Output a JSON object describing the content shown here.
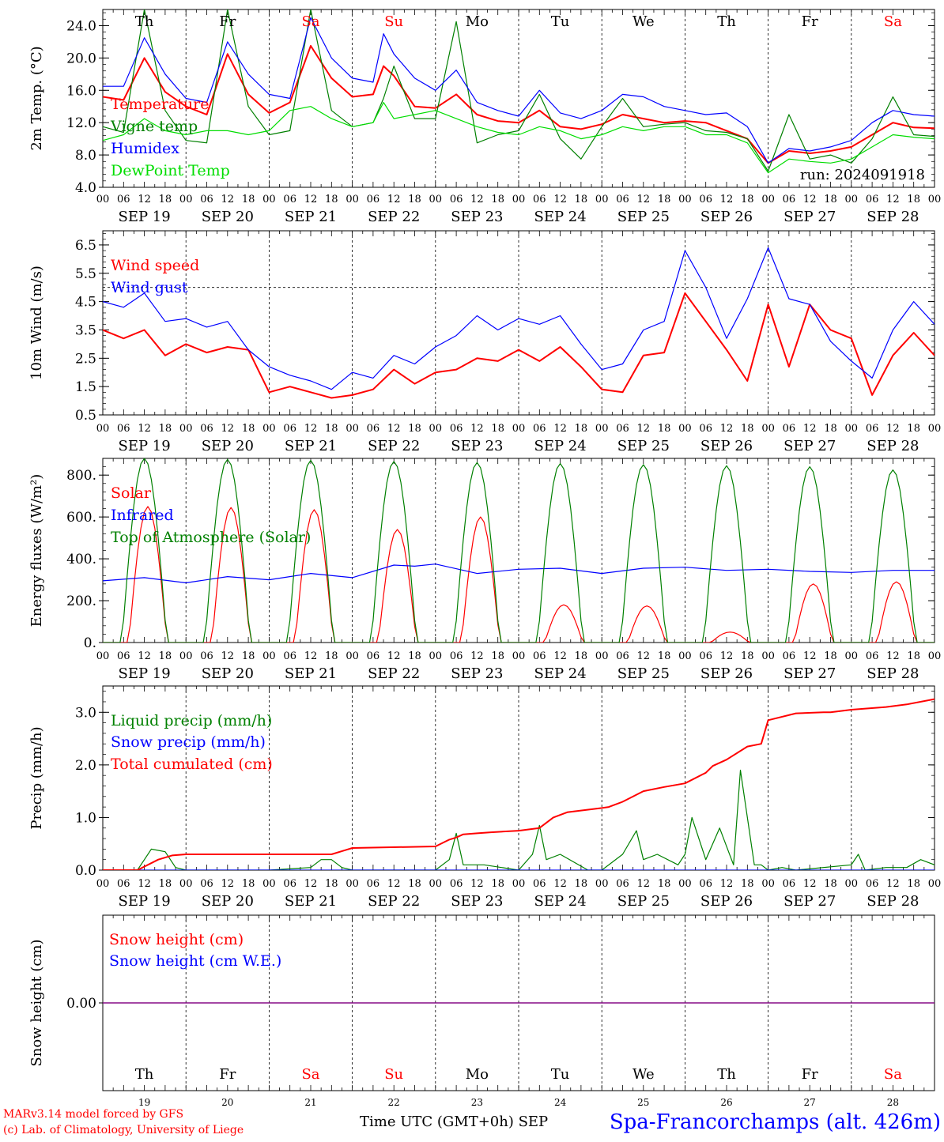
{
  "colors": {
    "red": "#ff0000",
    "green": "#008000",
    "blue": "#0000ff",
    "lime": "#00dd00",
    "purple": "#800080",
    "axis": "#000000"
  },
  "days": {
    "weekday": [
      "Th",
      "Fr",
      "Sa",
      "Su",
      "Mo",
      "Tu",
      "We",
      "Th",
      "Fr",
      "Sa"
    ],
    "weekday_colors": [
      "black",
      "black",
      "red",
      "red",
      "black",
      "black",
      "black",
      "black",
      "black",
      "red"
    ],
    "date_labels": [
      "SEP 19",
      "SEP 20",
      "SEP 21",
      "SEP 22",
      "SEP 23",
      "SEP 24",
      "SEP 25",
      "SEP 26",
      "SEP 27",
      "SEP 28"
    ],
    "day_numbers": [
      "19",
      "20",
      "21",
      "22",
      "23",
      "24",
      "25",
      "26",
      "27",
      "28"
    ],
    "hour_ticks": [
      "00",
      "06",
      "12",
      "18"
    ],
    "final_tick": "00"
  },
  "footer": {
    "model_credit": "MARv3.14 model forced by GFS",
    "copyright": "(c) Lab. of Climatology, University of Liege",
    "time_axis": "Time UTC (GMT+0h) SEP",
    "station": "Spa-Francorchamps (alt. 426m)"
  },
  "chart_data": [
    {
      "type": "line",
      "ylabel": "2m Temp. (°C)",
      "ylim": [
        4.0,
        26.0
      ],
      "ytick_values": [
        4.0,
        8.0,
        12.0,
        16.0,
        20.0,
        24.0
      ],
      "ytick_labels": [
        "4.0",
        "8.0",
        "12.0",
        "16.0",
        "20.0",
        "24.0"
      ],
      "annotation": "run: 2024091918",
      "x_unit": "hours since 2024-09-19 00 UTC",
      "series": [
        {
          "name": "Temperature",
          "color": "red",
          "x": [
            0,
            6,
            12,
            18,
            24,
            30,
            36,
            42,
            48,
            54,
            60,
            66,
            72,
            78,
            81,
            84,
            90,
            96,
            102,
            108,
            114,
            120,
            126,
            132,
            138,
            144,
            150,
            156,
            162,
            168,
            174,
            180,
            186,
            192,
            198,
            204,
            210,
            216,
            222,
            228,
            234,
            240
          ],
          "y": [
            15.2,
            14.8,
            20.0,
            15.8,
            14.0,
            13.0,
            20.5,
            15.5,
            13.2,
            14.5,
            21.5,
            17.5,
            15.2,
            15.5,
            19.0,
            17.8,
            14.0,
            13.8,
            15.5,
            13.0,
            12.2,
            12.0,
            13.5,
            11.5,
            11.2,
            11.8,
            13.0,
            12.5,
            12.0,
            12.2,
            12.0,
            11.0,
            10.0,
            7.0,
            8.5,
            8.2,
            8.5,
            9.0,
            10.5,
            12.0,
            11.4,
            11.3
          ]
        },
        {
          "name": "Vigne temp",
          "color": "green",
          "x": [
            0,
            6,
            12,
            18,
            24,
            30,
            36,
            42,
            48,
            54,
            60,
            66,
            72,
            78,
            81,
            84,
            90,
            96,
            102,
            108,
            114,
            120,
            126,
            132,
            138,
            144,
            150,
            156,
            162,
            168,
            174,
            180,
            186,
            192,
            198,
            204,
            210,
            216,
            222,
            228,
            234,
            240
          ],
          "y": [
            11.5,
            10.8,
            26.0,
            13.5,
            9.8,
            9.5,
            26.0,
            14.0,
            10.5,
            11.0,
            26.0,
            13.5,
            11.5,
            12.0,
            15.0,
            19.0,
            12.5,
            12.5,
            24.5,
            9.5,
            10.5,
            11.0,
            15.5,
            10.0,
            7.5,
            11.5,
            15.0,
            11.5,
            11.8,
            12.0,
            11.0,
            10.8,
            10.0,
            6.0,
            13.0,
            7.5,
            8.0,
            7.0,
            10.0,
            15.2,
            10.5,
            10.3
          ]
        },
        {
          "name": "Humidex",
          "color": "blue",
          "x": [
            0,
            6,
            12,
            18,
            24,
            30,
            36,
            42,
            48,
            54,
            60,
            66,
            72,
            78,
            81,
            84,
            90,
            96,
            102,
            108,
            114,
            120,
            126,
            132,
            138,
            144,
            150,
            156,
            162,
            168,
            174,
            180,
            186,
            192,
            198,
            204,
            210,
            216,
            222,
            228,
            234,
            240
          ],
          "y": [
            16.5,
            16.5,
            22.5,
            18.0,
            15.0,
            14.5,
            22.0,
            18.0,
            15.5,
            15.0,
            25.0,
            20.0,
            17.5,
            17.0,
            23.0,
            20.5,
            17.5,
            16.0,
            18.5,
            14.5,
            13.5,
            12.8,
            16.0,
            13.2,
            12.5,
            13.5,
            15.5,
            15.2,
            14.0,
            13.5,
            13.0,
            13.2,
            11.5,
            7.0,
            8.8,
            8.5,
            9.0,
            9.8,
            12.0,
            13.5,
            13.0,
            12.8
          ]
        },
        {
          "name": "DewPoint Temp",
          "color": "lime",
          "x": [
            0,
            6,
            12,
            18,
            24,
            30,
            36,
            42,
            48,
            54,
            60,
            66,
            72,
            78,
            81,
            84,
            90,
            96,
            102,
            108,
            114,
            120,
            126,
            132,
            138,
            144,
            150,
            156,
            162,
            168,
            174,
            180,
            186,
            192,
            198,
            204,
            210,
            216,
            222,
            228,
            234,
            240
          ],
          "y": [
            9.8,
            10.5,
            12.5,
            11.0,
            10.5,
            11.0,
            11.0,
            10.5,
            11.0,
            13.5,
            14.0,
            12.5,
            11.5,
            12.0,
            14.5,
            12.5,
            13.0,
            13.5,
            12.5,
            11.5,
            10.8,
            10.5,
            11.5,
            11.0,
            10.0,
            10.5,
            11.5,
            11.0,
            11.5,
            11.5,
            10.5,
            10.5,
            9.5,
            5.8,
            7.5,
            7.2,
            7.0,
            7.5,
            9.0,
            10.5,
            10.2,
            10.0
          ]
        }
      ]
    },
    {
      "type": "line",
      "ylabel": "10m Wind (m/s)",
      "ylim": [
        0.5,
        7.0
      ],
      "ytick_values": [
        0.5,
        1.5,
        2.5,
        3.5,
        4.5,
        5.5,
        6.5
      ],
      "ytick_labels": [
        "0.5",
        "1.5",
        "2.5",
        "3.5",
        "4.5",
        "5.5",
        "6.5"
      ],
      "reference_line": 5.0,
      "x_unit": "hours since 2024-09-19 00 UTC",
      "series": [
        {
          "name": "Wind speed",
          "color": "red",
          "x": [
            0,
            6,
            12,
            18,
            24,
            30,
            36,
            42,
            48,
            54,
            60,
            66,
            72,
            78,
            84,
            90,
            96,
            102,
            108,
            114,
            120,
            126,
            132,
            138,
            144,
            150,
            156,
            162,
            168,
            174,
            180,
            186,
            192,
            198,
            204,
            210,
            216,
            222,
            228,
            234,
            240
          ],
          "y": [
            3.5,
            3.2,
            3.5,
            2.6,
            3.0,
            2.7,
            2.9,
            2.8,
            1.3,
            1.5,
            1.3,
            1.1,
            1.2,
            1.4,
            2.1,
            1.6,
            2.0,
            2.1,
            2.5,
            2.4,
            2.8,
            2.4,
            2.9,
            2.2,
            1.4,
            1.3,
            2.6,
            2.7,
            4.8,
            3.8,
            2.8,
            1.7,
            4.4,
            2.2,
            4.4,
            3.5,
            3.2,
            1.2,
            2.6,
            3.4,
            2.6
          ]
        },
        {
          "name": "Wind gust",
          "color": "blue",
          "x": [
            0,
            6,
            12,
            18,
            24,
            30,
            36,
            42,
            48,
            54,
            60,
            66,
            72,
            78,
            84,
            90,
            96,
            102,
            108,
            114,
            120,
            126,
            132,
            138,
            144,
            150,
            156,
            162,
            168,
            174,
            180,
            186,
            192,
            198,
            204,
            210,
            216,
            222,
            228,
            234,
            240
          ],
          "y": [
            4.5,
            4.3,
            4.8,
            3.8,
            3.9,
            3.6,
            3.8,
            2.8,
            2.2,
            1.9,
            1.7,
            1.4,
            2.0,
            1.8,
            2.6,
            2.3,
            2.9,
            3.3,
            4.0,
            3.5,
            3.9,
            3.7,
            4.0,
            3.0,
            2.1,
            2.3,
            3.5,
            3.8,
            6.3,
            5.0,
            3.2,
            4.6,
            6.4,
            4.6,
            4.4,
            3.1,
            2.4,
            1.8,
            3.5,
            4.5,
            3.7
          ]
        }
      ]
    },
    {
      "type": "line",
      "ylabel": "Energy fluxes (W/m²)",
      "ylim": [
        0,
        880
      ],
      "ytick_values": [
        0,
        200,
        400,
        600,
        800
      ],
      "ytick_labels": [
        "0.",
        "200.",
        "400.",
        "600.",
        "800."
      ],
      "x_unit": "hours since 2024-09-19 00 UTC",
      "series": [
        {
          "name": "Solar",
          "color": "red",
          "daily_peak_hour": 13,
          "daily_peaks": [
            650,
            645,
            635,
            540,
            600,
            180,
            175,
            50,
            280,
            290
          ]
        },
        {
          "name": "Infrared",
          "color": "blue",
          "x": [
            0,
            12,
            24,
            36,
            48,
            60,
            72,
            84,
            90,
            96,
            108,
            120,
            132,
            144,
            156,
            168,
            180,
            192,
            204,
            216,
            228,
            240
          ],
          "y": [
            295,
            310,
            285,
            315,
            300,
            330,
            310,
            370,
            365,
            375,
            330,
            350,
            355,
            330,
            355,
            360,
            345,
            350,
            340,
            335,
            345,
            345
          ]
        },
        {
          "name": "Top of Atmosphere (Solar)",
          "color": "green",
          "daily_peak_hour": 12,
          "daily_peaks": [
            880,
            875,
            870,
            865,
            860,
            855,
            850,
            845,
            840,
            825
          ]
        }
      ]
    },
    {
      "type": "line",
      "ylabel": "Precip (mm/h)",
      "ylim": [
        0,
        3.5
      ],
      "ytick_values": [
        0,
        1.0,
        2.0,
        3.0
      ],
      "ytick_labels": [
        "0.0",
        "1.0",
        "2.0",
        "3.0"
      ],
      "x_unit": "hours since 2024-09-19 00 UTC",
      "series": [
        {
          "name": "Liquid precip (mm/h)",
          "color": "green",
          "x": [
            0,
            10,
            14,
            18,
            21,
            24,
            48,
            60,
            63,
            66,
            69,
            72,
            96,
            100,
            102,
            104,
            110,
            120,
            124,
            126,
            128,
            132,
            140,
            144,
            150,
            154,
            156,
            160,
            166,
            168,
            170,
            174,
            178,
            182,
            184,
            188,
            190,
            192,
            196,
            200,
            216,
            218,
            220,
            226,
            232,
            236,
            240
          ],
          "y": [
            0,
            0,
            0.4,
            0.35,
            0.05,
            0,
            0,
            0.05,
            0.2,
            0.2,
            0.05,
            0,
            0,
            0.2,
            0.7,
            0.1,
            0.1,
            0,
            0.3,
            0.85,
            0.2,
            0.3,
            0,
            0,
            0.3,
            0.75,
            0.2,
            0.3,
            0.1,
            0.3,
            1.0,
            0.2,
            0.8,
            0.1,
            1.9,
            0.1,
            0.1,
            0,
            0.05,
            0,
            0.1,
            0.3,
            0,
            0.05,
            0.05,
            0.2,
            0.1
          ]
        },
        {
          "name": "Snow precip (mm/h)",
          "color": "blue",
          "x": [
            0,
            240
          ],
          "y": [
            0,
            0
          ]
        },
        {
          "name": "Total cumulated (cm)",
          "color": "red",
          "x": [
            0,
            10,
            16,
            20,
            24,
            48,
            66,
            70,
            72,
            96,
            100,
            102,
            104,
            108,
            112,
            120,
            126,
            130,
            134,
            144,
            146,
            150,
            156,
            162,
            168,
            174,
            176,
            180,
            186,
            190,
            192,
            200,
            208,
            210,
            216,
            226,
            232,
            240
          ],
          "y": [
            0,
            0,
            0.2,
            0.28,
            0.3,
            0.3,
            0.3,
            0.38,
            0.42,
            0.45,
            0.58,
            0.62,
            0.68,
            0.7,
            0.72,
            0.75,
            0.8,
            1.0,
            1.1,
            1.18,
            1.2,
            1.3,
            1.5,
            1.58,
            1.65,
            1.85,
            1.98,
            2.1,
            2.35,
            2.4,
            2.85,
            2.98,
            3.0,
            3.0,
            3.05,
            3.1,
            3.15,
            3.25
          ]
        }
      ]
    },
    {
      "type": "line",
      "ylabel": "Snow height (cm)",
      "ylim": [
        -1,
        1
      ],
      "ytick_values": [
        0
      ],
      "ytick_labels": [
        "0.00"
      ],
      "x_unit": "hours since 2024-09-19 00 UTC",
      "series": [
        {
          "name": "Snow height (cm)",
          "color": "red",
          "x": [
            0,
            240
          ],
          "y": [
            0,
            0
          ]
        },
        {
          "name": "Snow height (cm W.E.)",
          "color": "blue",
          "x": [
            0,
            240
          ],
          "y": [
            0,
            0
          ]
        }
      ]
    }
  ]
}
